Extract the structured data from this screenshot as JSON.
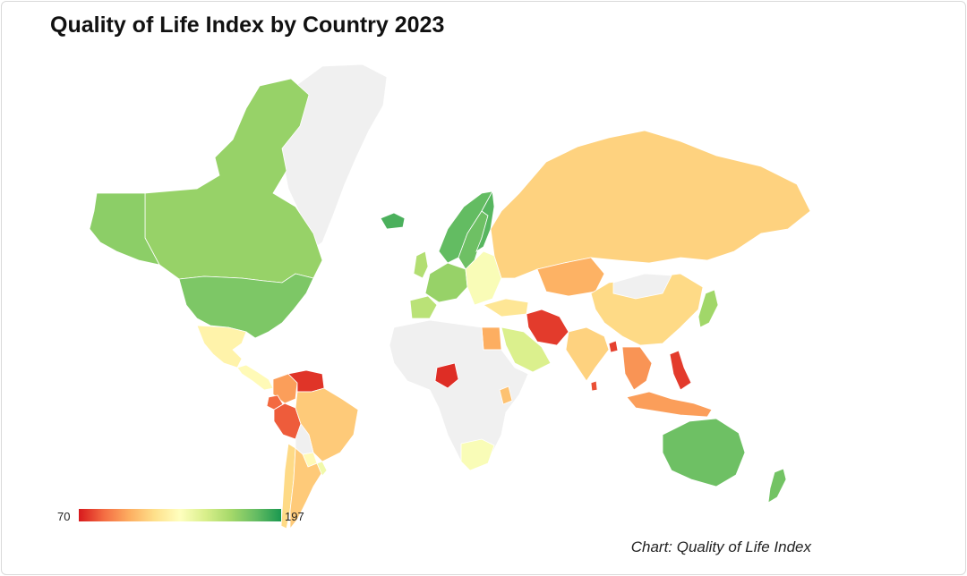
{
  "title": "Quality of Life Index by Country 2023",
  "credit": "Chart: Quality of Life Index",
  "legend": {
    "min_label": "70",
    "max_label": "197",
    "min_value": 70,
    "max_value": 197,
    "colors": [
      "#d7191c",
      "#f46d43",
      "#fdae61",
      "#fee08b",
      "#ffffbf",
      "#d9ef8b",
      "#a6d96a",
      "#66bd63",
      "#1a9850"
    ]
  },
  "no_data_color": "#f0f0f0",
  "countries": [
    {
      "name": "Greenland",
      "level": null
    },
    {
      "name": "Canada",
      "level": 0.78
    },
    {
      "name": "Alaska",
      "level": 0.8
    },
    {
      "name": "United States",
      "level": 0.83
    },
    {
      "name": "Mexico",
      "level": 0.45
    },
    {
      "name": "Central America",
      "level": 0.48
    },
    {
      "name": "Colombia",
      "level": 0.22
    },
    {
      "name": "Venezuela",
      "level": 0.04
    },
    {
      "name": "Ecuador",
      "level": 0.12
    },
    {
      "name": "Peru",
      "level": 0.1
    },
    {
      "name": "Brazil",
      "level": 0.32
    },
    {
      "name": "Bolivia",
      "level": null
    },
    {
      "name": "Paraguay",
      "level": 0.48
    },
    {
      "name": "Chile",
      "level": 0.36
    },
    {
      "name": "Argentina",
      "level": 0.32
    },
    {
      "name": "Uruguay",
      "level": 0.55
    },
    {
      "name": "Iceland",
      "level": 0.92
    },
    {
      "name": "Norway",
      "level": 0.88
    },
    {
      "name": "Sweden",
      "level": 0.86
    },
    {
      "name": "Finland",
      "level": 0.9
    },
    {
      "name": "United Kingdom",
      "level": 0.72
    },
    {
      "name": "Western Europe",
      "level": 0.78
    },
    {
      "name": "Eastern Europe",
      "level": 0.52
    },
    {
      "name": "Iberia",
      "level": 0.7
    },
    {
      "name": "Russia",
      "level": 0.34
    },
    {
      "name": "Kazakhstan",
      "level": 0.26
    },
    {
      "name": "Turkey",
      "level": 0.4
    },
    {
      "name": "Iran",
      "level": 0.05
    },
    {
      "name": "Saudi Arabia",
      "level": 0.62
    },
    {
      "name": "Egypt",
      "level": 0.25
    },
    {
      "name": "Nigeria",
      "level": 0.03
    },
    {
      "name": "Kenya",
      "level": 0.3
    },
    {
      "name": "South Africa",
      "level": 0.52
    },
    {
      "name": "Africa (other)",
      "level": null
    },
    {
      "name": "India",
      "level": 0.34
    },
    {
      "name": "Bangladesh",
      "level": 0.06
    },
    {
      "name": "Sri Lanka",
      "level": 0.08
    },
    {
      "name": "China",
      "level": 0.36
    },
    {
      "name": "Mongolia",
      "level": null
    },
    {
      "name": "Japan",
      "level": 0.76
    },
    {
      "name": "Southeast Asia",
      "level": 0.2
    },
    {
      "name": "Philippines",
      "level": 0.05
    },
    {
      "name": "Indonesia",
      "level": 0.22
    },
    {
      "name": "Australia",
      "level": 0.86
    },
    {
      "name": "New Zealand",
      "level": 0.85
    }
  ]
}
